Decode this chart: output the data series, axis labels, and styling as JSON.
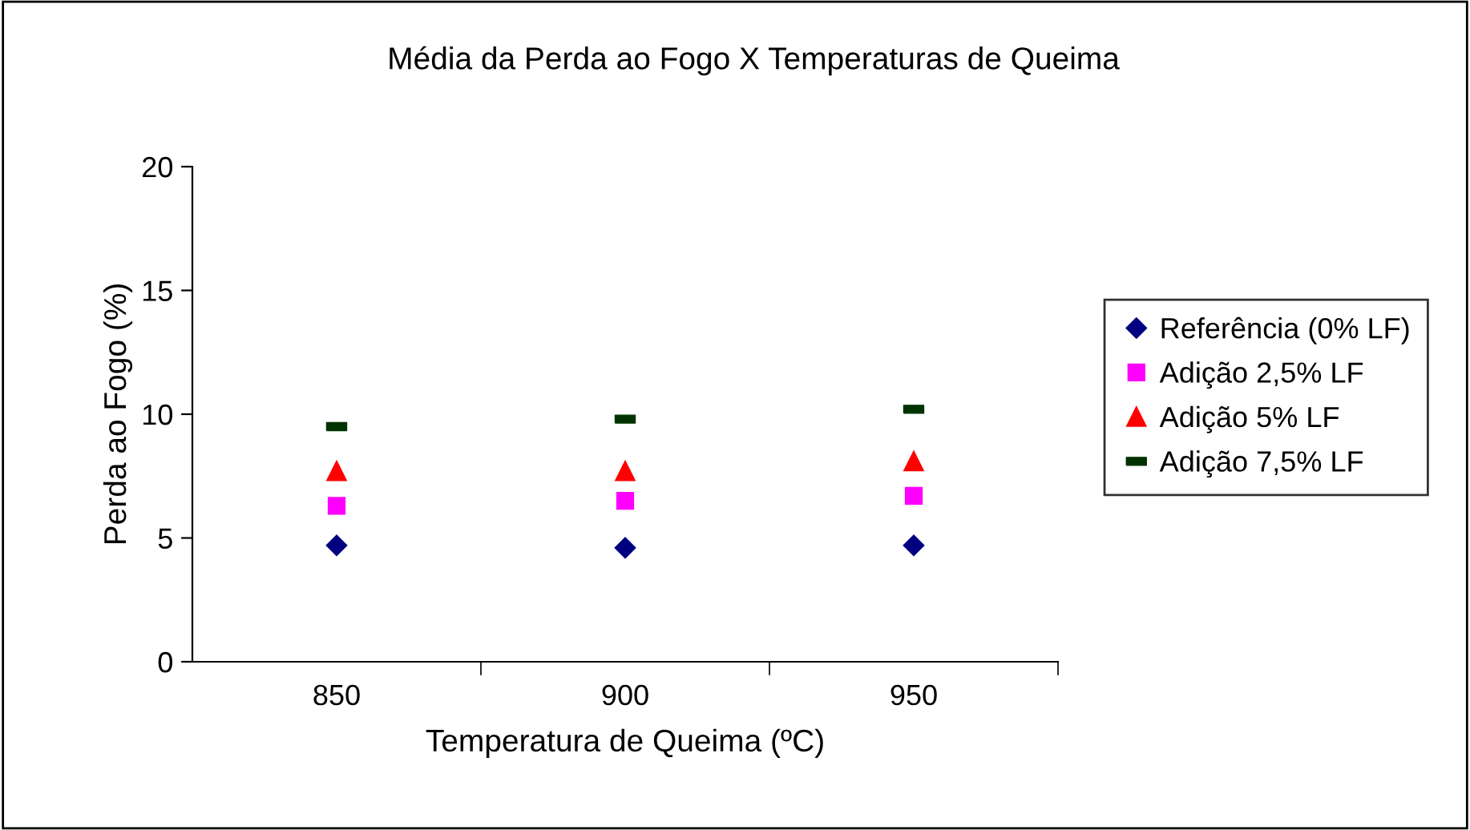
{
  "chart_data": {
    "type": "scatter",
    "title": "Média da Perda ao Fogo X Temperaturas de Queima",
    "xlabel": "Temperatura de Queima (ºC)",
    "ylabel": "Perda ao Fogo (%)",
    "categories": [
      "850",
      "900",
      "950"
    ],
    "series": [
      {
        "name": "Referência (0% LF)",
        "color": "#000080",
        "marker": "diamond",
        "values": [
          4.7,
          4.6,
          4.7
        ]
      },
      {
        "name": "Adição 2,5% LF",
        "color": "#ff00ff",
        "marker": "square",
        "values": [
          6.3,
          6.5,
          6.7
        ]
      },
      {
        "name": "Adição 5% LF",
        "color": "#ff0000",
        "marker": "triangle",
        "values": [
          7.7,
          7.7,
          8.1
        ]
      },
      {
        "name": "Adição 7,5% LF",
        "color": "#003300",
        "values": [
          9.5,
          9.8,
          10.2
        ]
      }
    ],
    "ylim": [
      0,
      20
    ],
    "yticks": [
      0,
      5,
      10,
      15,
      20
    ],
    "grid": false,
    "legend": "right"
  }
}
